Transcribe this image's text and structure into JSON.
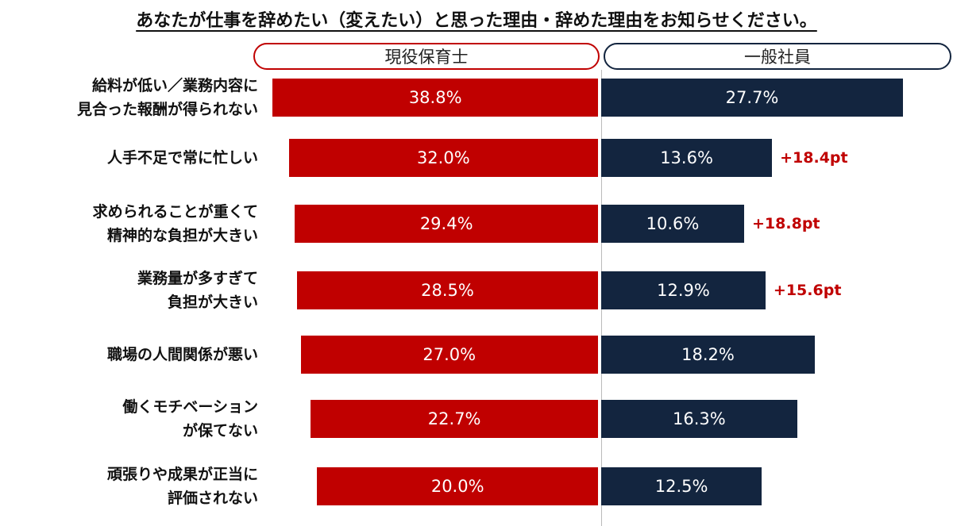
{
  "chart_data": {
    "type": "bar",
    "orientation": "horizontal-butterfly",
    "title": "あなたが仕事を辞めたい（変えたい）と思った理由・辞めた理由をお知らせください。",
    "categories": [
      "給料が低い／業務内容に\n見合った報酬が得られない",
      "人手不足で常に忙しい",
      "求められることが重くて\n精神的な負担が大きい",
      "業務量が多すぎて\n負担が大きい",
      "職場の人間関係が悪い",
      "働くモチベーション\nが保てない",
      "頑張りや成果が正当に\n評価されない"
    ],
    "series": [
      {
        "name": "現役保育士",
        "color": "#c00000",
        "values": [
          38.8,
          32.0,
          29.4,
          28.5,
          27.0,
          22.7,
          20.0
        ],
        "labels": [
          "38.8%",
          "32.0%",
          "29.4%",
          "28.5%",
          "27.0%",
          "22.7%",
          "20.0%"
        ]
      },
      {
        "name": "一般社員",
        "color": "#13253f",
        "values": [
          27.7,
          13.6,
          10.6,
          12.9,
          18.2,
          16.3,
          12.5
        ],
        "labels": [
          "27.7%",
          "13.6%",
          "10.6%",
          "12.9%",
          "18.2%",
          "16.3%",
          "12.5%"
        ]
      }
    ],
    "annotations": [
      "",
      "+18.4pt",
      "+18.8pt",
      "+15.6pt",
      "",
      "",
      ""
    ],
    "annotation_color": "#c00000",
    "grid": false,
    "legend": "top"
  }
}
